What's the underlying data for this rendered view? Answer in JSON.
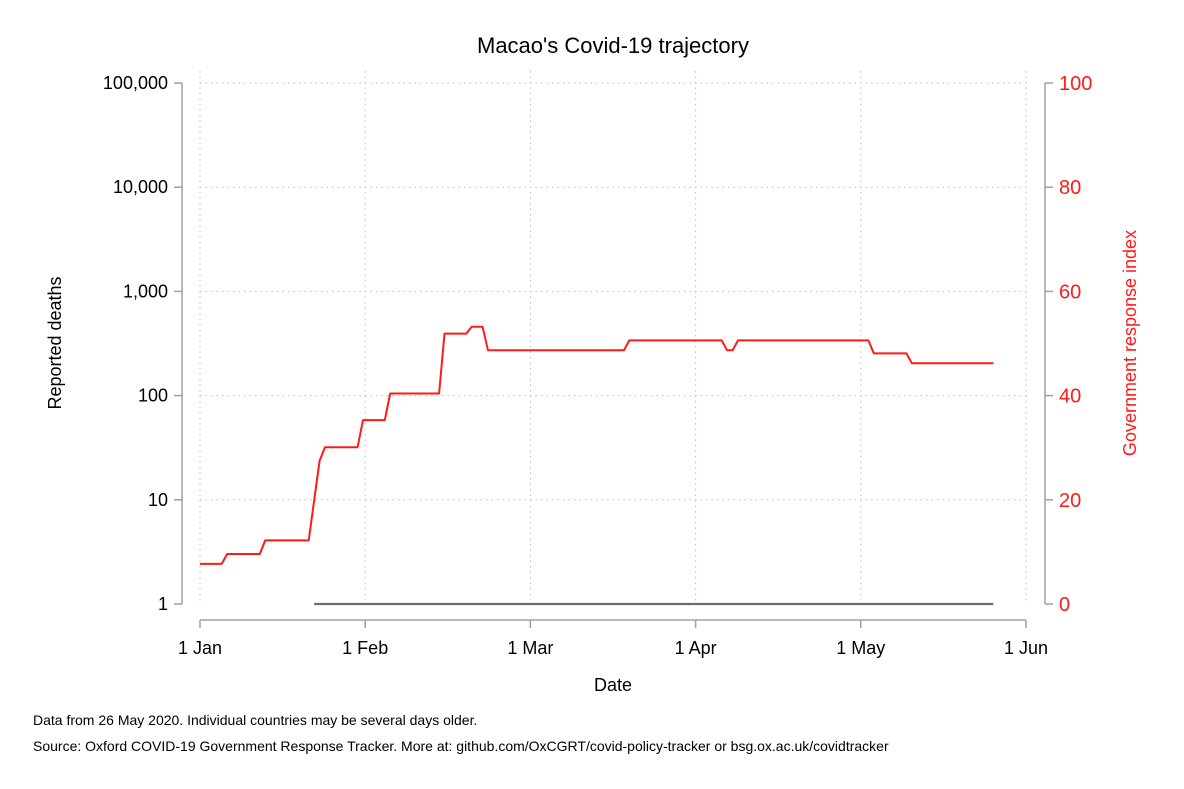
{
  "chart_data": {
    "type": "line",
    "title": "Macao's Covid-19 trajectory",
    "xlabel": "Date",
    "ylabel_left": "Reported deaths",
    "ylabel_right": "Government response index",
    "x_ticks": [
      "1 Jan",
      "1 Feb",
      "1 Mar",
      "1 Apr",
      "1 May",
      "1 Jun"
    ],
    "x_range": [
      "2020-01-01",
      "2020-06-01"
    ],
    "y_left_scale": "log",
    "y_left_range": [
      1,
      100000
    ],
    "y_left_ticks": [
      {
        "value": 1,
        "label": "1"
      },
      {
        "value": 10,
        "label": "10"
      },
      {
        "value": 100,
        "label": "100"
      },
      {
        "value": 1000,
        "label": "1,000"
      },
      {
        "value": 10000,
        "label": "10,000"
      },
      {
        "value": 100000,
        "label": "100,000"
      }
    ],
    "y_right_range": [
      0,
      100
    ],
    "y_right_ticks": [
      "0",
      "20",
      "40",
      "60",
      "80",
      "100"
    ],
    "grid": true,
    "colors": {
      "response": "#ff1a1a",
      "deaths": "#6e6e6e",
      "right_axis": "#ff1a1a",
      "grid": "#bdbdbd",
      "axis": "#a0a0a0"
    },
    "series": [
      {
        "axis": "left",
        "color": "#6e6e6e",
        "points": [
          [
            "2020-01-22",
            1
          ],
          [
            "2020-05-26",
            1
          ]
        ]
      },
      {
        "axis": "right",
        "color": "#ff1a1a",
        "points": [
          [
            "2020-01-01",
            7.7
          ],
          [
            "2020-01-05",
            7.7
          ],
          [
            "2020-01-06",
            9.6
          ],
          [
            "2020-01-12",
            9.6
          ],
          [
            "2020-01-13",
            12.2
          ],
          [
            "2020-01-21",
            12.2
          ],
          [
            "2020-01-23",
            27.5
          ],
          [
            "2020-01-24",
            30.1
          ],
          [
            "2020-01-30",
            30.1
          ],
          [
            "2020-01-31",
            35.3
          ],
          [
            "2020-02-04",
            35.3
          ],
          [
            "2020-02-05",
            40.4
          ],
          [
            "2020-02-14",
            40.4
          ],
          [
            "2020-02-15",
            51.9
          ],
          [
            "2020-02-19",
            51.9
          ],
          [
            "2020-02-20",
            53.2
          ],
          [
            "2020-02-22",
            53.2
          ],
          [
            "2020-02-23",
            48.7
          ],
          [
            "2020-03-19",
            48.7
          ],
          [
            "2020-03-20",
            50.6
          ],
          [
            "2020-04-06",
            50.6
          ],
          [
            "2020-04-07",
            48.7
          ],
          [
            "2020-04-08",
            48.7
          ],
          [
            "2020-04-09",
            50.6
          ],
          [
            "2020-05-03",
            50.6
          ],
          [
            "2020-05-04",
            48.1
          ],
          [
            "2020-05-10",
            48.1
          ],
          [
            "2020-05-11",
            46.2
          ],
          [
            "2020-05-26",
            46.2
          ]
        ]
      }
    ]
  },
  "footer": {
    "note": "Data from 26 May 2020. Individual countries may be several days older.",
    "source": "Source: Oxford COVID-19 Government Response Tracker. More at: github.com/OxCGRT/covid-policy-tracker or bsg.ox.ac.uk/covidtracker"
  }
}
